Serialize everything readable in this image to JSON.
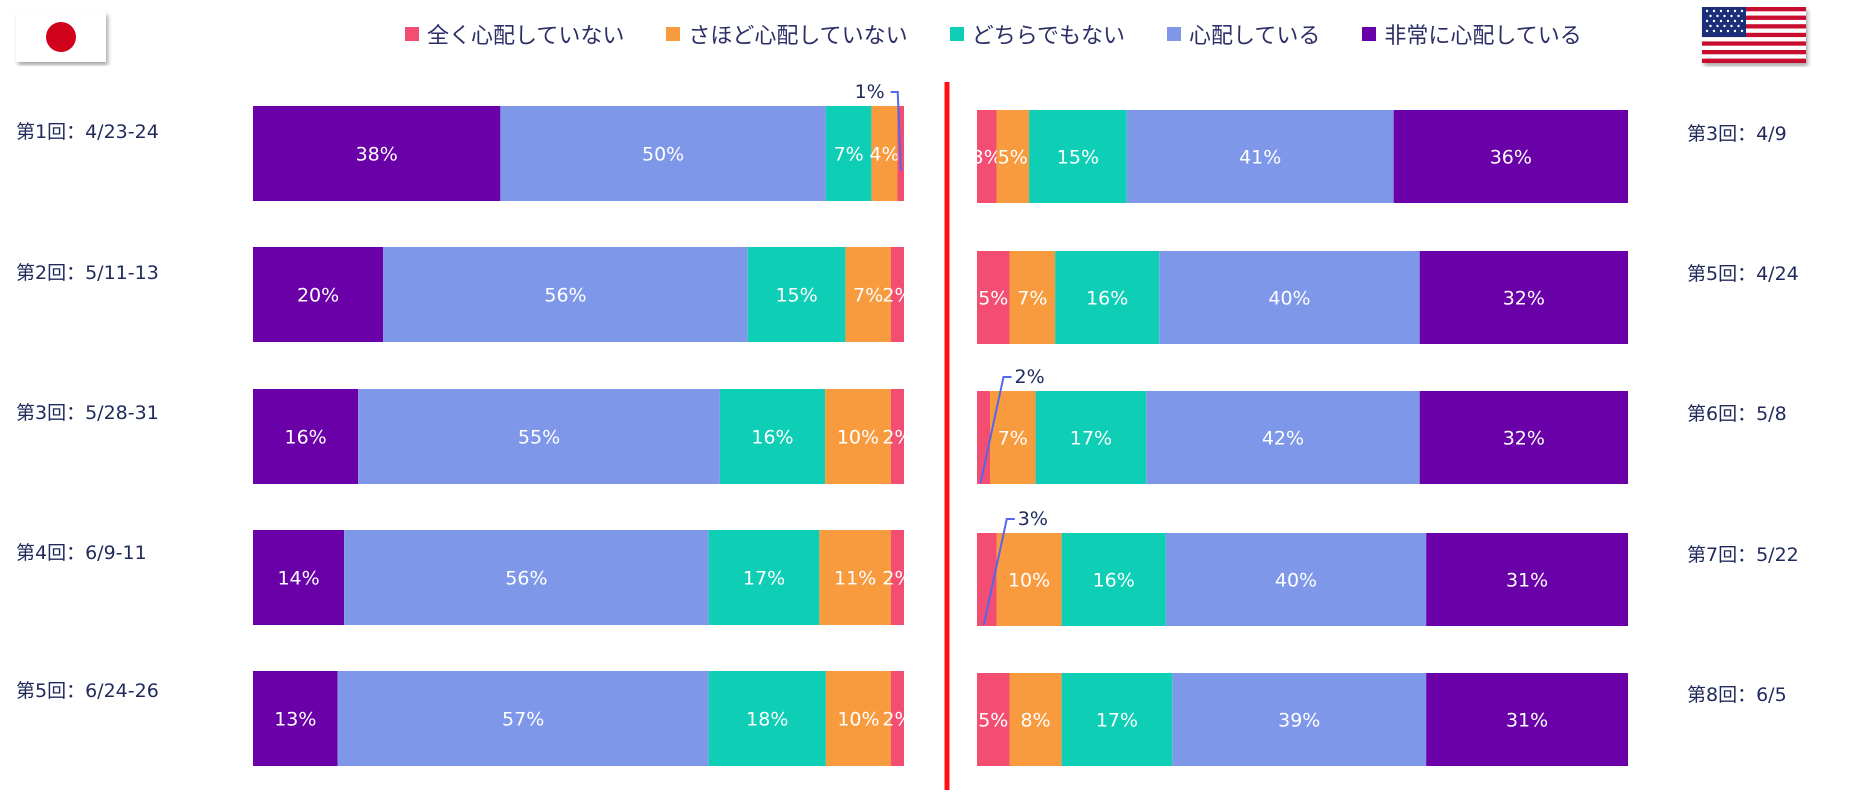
{
  "legend": [
    {
      "label": "全く心配していない",
      "color": "#f44d72"
    },
    {
      "label": "さほど心配していない",
      "color": "#f89b3e"
    },
    {
      "label": "どちらでもない",
      "color": "#0ecfb5"
    },
    {
      "label": "心配している",
      "color": "#7f97e9"
    },
    {
      "label": "非常に心配している",
      "color": "#6a00a8"
    }
  ],
  "flags": {
    "japan": "japan-flag-icon",
    "usa": "usa-flag-icon"
  },
  "chart_data": [
    {
      "type": "bar",
      "orientation": "horizontal-stacked",
      "country": "Japan",
      "categories": [
        "第1回：4/23-24",
        "第2回：5/11-13",
        "第3回：5/28-31",
        "第4回：6/9-11",
        "第5回：6/24-26"
      ],
      "series": [
        {
          "name": "非常に心配している",
          "values": [
            38,
            20,
            16,
            14,
            13
          ]
        },
        {
          "name": "心配している",
          "values": [
            50,
            56,
            55,
            56,
            57
          ]
        },
        {
          "name": "どちらでもない",
          "values": [
            7,
            15,
            16,
            17,
            18
          ]
        },
        {
          "name": "さほど心配していない",
          "values": [
            4,
            7,
            10,
            11,
            10
          ]
        },
        {
          "name": "全く心配していない",
          "values": [
            1,
            2,
            2,
            2,
            2
          ]
        }
      ],
      "data_labels": [
        [
          "38%",
          "50%",
          "7%",
          "4%",
          ""
        ],
        [
          "20%",
          "56%",
          "15%",
          "7%",
          "2%"
        ],
        [
          "16%",
          "55%",
          "16%",
          "10%",
          "2%"
        ],
        [
          "14%",
          "56%",
          "17%",
          "11%",
          "2%"
        ],
        [
          "13%",
          "57%",
          "18%",
          "10%",
          "2%"
        ]
      ],
      "callouts": [
        {
          "row": 0,
          "series": 4,
          "text": "1%"
        }
      ]
    },
    {
      "type": "bar",
      "orientation": "horizontal-stacked",
      "country": "USA",
      "categories": [
        "第3回：4/9",
        "第5回：4/24",
        "第6回：5/8",
        "第7回：5/22",
        "第8回：6/5"
      ],
      "series": [
        {
          "name": "全く心配していない",
          "values": [
            3,
            5,
            2,
            3,
            5
          ]
        },
        {
          "name": "さほど心配していない",
          "values": [
            5,
            7,
            7,
            10,
            8
          ]
        },
        {
          "name": "どちらでもない",
          "values": [
            15,
            16,
            17,
            16,
            17
          ]
        },
        {
          "name": "心配している",
          "values": [
            41,
            40,
            42,
            40,
            39
          ]
        },
        {
          "name": "非常に心配している",
          "values": [
            36,
            32,
            32,
            31,
            31
          ]
        }
      ],
      "data_labels": [
        [
          "3%",
          "5%",
          "15%",
          "41%",
          "36%"
        ],
        [
          "5%",
          "7%",
          "16%",
          "40%",
          "32%"
        ],
        [
          "",
          "7%",
          "17%",
          "42%",
          "32%"
        ],
        [
          "",
          "10%",
          "16%",
          "40%",
          "31%"
        ],
        [
          "5%",
          "8%",
          "17%",
          "39%",
          "31%"
        ]
      ],
      "callouts": [
        {
          "row": 2,
          "series": 0,
          "text": "2%"
        },
        {
          "row": 3,
          "series": 0,
          "text": "3%"
        }
      ]
    }
  ]
}
